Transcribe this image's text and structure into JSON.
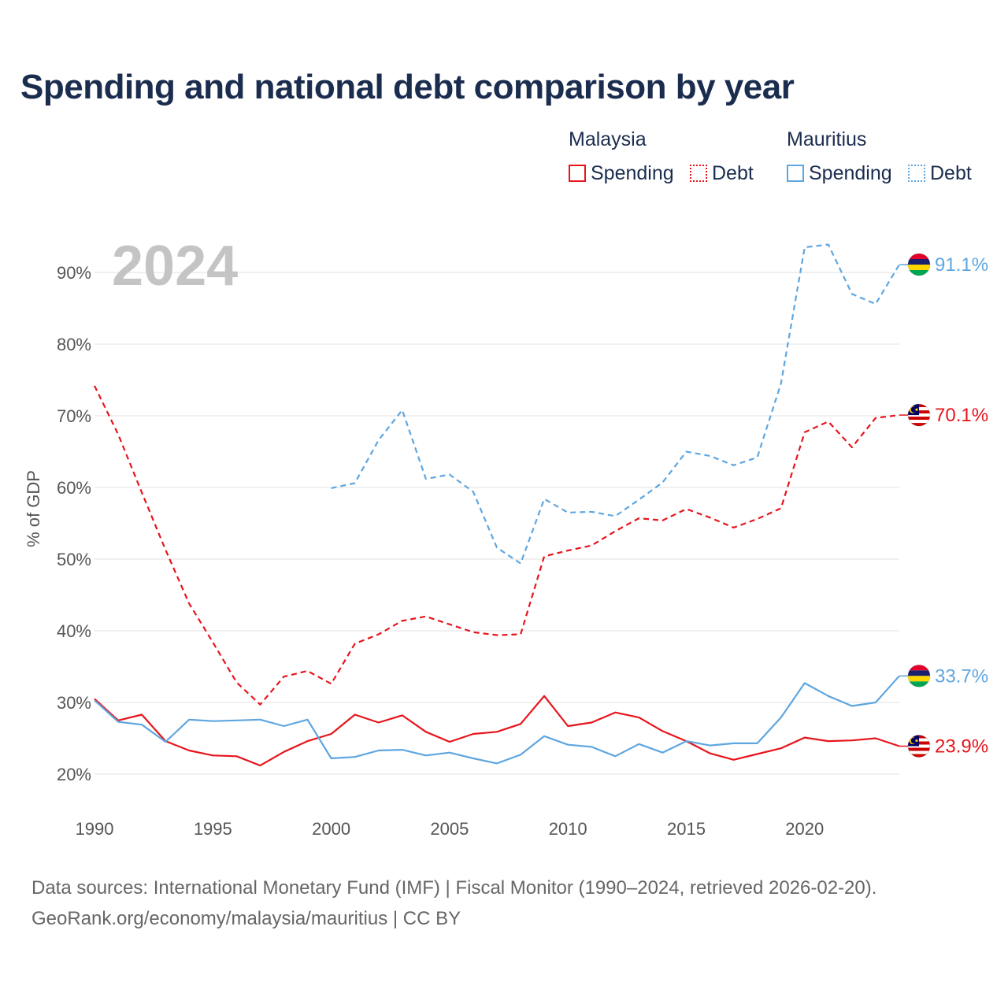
{
  "title": "Spending and national debt comparison by year",
  "legend": {
    "groups": [
      {
        "country": "Malaysia",
        "color": "#e8141c",
        "items": [
          {
            "label": "Spending",
            "style": "solid"
          },
          {
            "label": "Debt",
            "style": "dotted"
          }
        ]
      },
      {
        "country": "Mauritius",
        "color": "#5ea6e0",
        "items": [
          {
            "label": "Spending",
            "style": "solid"
          },
          {
            "label": "Debt",
            "style": "dotted"
          }
        ]
      }
    ]
  },
  "year_label": "2024",
  "source_line1": "Data sources: International Monetary Fund (IMF) | Fiscal Monitor (1990–2024, retrieved 2026-02-20).",
  "source_line2": "GeoRank.org/economy/malaysia/mauritius | CC BY",
  "colors": {
    "malaysia": "#e8141c",
    "mauritius": "#5ea6e0",
    "grid": "#e6e6e6",
    "text": "#1b2d4f"
  },
  "chart_data": {
    "type": "line",
    "title": "Spending and national debt comparison by year",
    "xlabel": "",
    "ylabel": "% of GDP",
    "xlim": [
      1990,
      2024
    ],
    "ylim": [
      15,
      95
    ],
    "x_ticks": [
      1990,
      1995,
      2000,
      2005,
      2010,
      2015,
      2020
    ],
    "y_ticks": [
      20,
      30,
      40,
      50,
      60,
      70,
      80,
      90
    ],
    "y_tick_labels": [
      "20%",
      "30%",
      "40%",
      "50%",
      "60%",
      "70%",
      "80%",
      "90%"
    ],
    "grid": true,
    "series": [
      {
        "name": "Malaysia Debt",
        "country": "Malaysia",
        "kind": "debt",
        "style": "dashed",
        "color": "#e8141c",
        "end_label": "70.1%",
        "flag": "malaysia-flag-icon",
        "x": [
          1990,
          1991,
          1992,
          1993,
          1994,
          1995,
          1996,
          1997,
          1998,
          1999,
          2000,
          2001,
          2002,
          2003,
          2004,
          2005,
          2006,
          2007,
          2008,
          2009,
          2010,
          2011,
          2012,
          2013,
          2014,
          2015,
          2016,
          2017,
          2018,
          2019,
          2020,
          2021,
          2022,
          2023,
          2024
        ],
        "values": [
          74.2,
          67.4,
          59.3,
          51.3,
          43.8,
          38.4,
          32.8,
          29.7,
          33.6,
          34.4,
          32.6,
          38.2,
          39.5,
          41.4,
          42.0,
          40.9,
          39.8,
          39.4,
          39.5,
          50.4,
          51.2,
          51.9,
          53.9,
          55.7,
          55.4,
          57.0,
          55.8,
          54.4,
          55.6,
          57.1,
          67.7,
          69.2,
          65.6,
          69.7,
          70.1
        ]
      },
      {
        "name": "Mauritius Debt",
        "country": "Mauritius",
        "kind": "debt",
        "style": "dashed",
        "color": "#5ea6e0",
        "end_label": "91.1%",
        "flag": "mauritius-flag-icon",
        "x": [
          2000,
          2001,
          2002,
          2003,
          2004,
          2005,
          2006,
          2007,
          2008,
          2009,
          2010,
          2011,
          2012,
          2013,
          2014,
          2015,
          2016,
          2017,
          2018,
          2019,
          2020,
          2021,
          2022,
          2023,
          2024
        ],
        "values": [
          59.9,
          60.6,
          66.6,
          70.8,
          61.2,
          61.8,
          59.4,
          51.6,
          49.4,
          58.4,
          56.5,
          56.6,
          56.0,
          58.3,
          60.7,
          65.0,
          64.4,
          63.1,
          64.2,
          74.5,
          93.5,
          93.9,
          87.0,
          85.6,
          91.1
        ]
      },
      {
        "name": "Malaysia Spending",
        "country": "Malaysia",
        "kind": "spending",
        "style": "solid",
        "color": "#e8141c",
        "end_label": "23.9%",
        "flag": "malaysia-flag-icon",
        "x": [
          1990,
          1991,
          1992,
          1993,
          1994,
          1995,
          1996,
          1997,
          1998,
          1999,
          2000,
          2001,
          2002,
          2003,
          2004,
          2005,
          2006,
          2007,
          2008,
          2009,
          2010,
          2011,
          2012,
          2013,
          2014,
          2015,
          2016,
          2017,
          2018,
          2019,
          2020,
          2021,
          2022,
          2023,
          2024
        ],
        "values": [
          30.5,
          27.5,
          28.3,
          24.6,
          23.3,
          22.6,
          22.5,
          21.2,
          23.1,
          24.6,
          25.6,
          28.3,
          27.2,
          28.2,
          25.9,
          24.5,
          25.6,
          25.9,
          27.0,
          30.9,
          26.7,
          27.2,
          28.6,
          27.9,
          26.0,
          24.6,
          22.9,
          22.0,
          22.8,
          23.6,
          25.1,
          24.6,
          24.7,
          25.0,
          23.9
        ]
      },
      {
        "name": "Mauritius Spending",
        "country": "Mauritius",
        "kind": "spending",
        "style": "solid",
        "color": "#5ea6e0",
        "end_label": "33.7%",
        "flag": "mauritius-flag-icon",
        "x": [
          1990,
          1991,
          1992,
          1993,
          1994,
          1995,
          1996,
          1997,
          1998,
          1999,
          2000,
          2001,
          2002,
          2003,
          2004,
          2005,
          2006,
          2007,
          2008,
          2009,
          2010,
          2011,
          2012,
          2013,
          2014,
          2015,
          2016,
          2017,
          2018,
          2019,
          2020,
          2021,
          2022,
          2023,
          2024
        ],
        "values": [
          30.3,
          27.3,
          26.9,
          24.5,
          27.6,
          27.4,
          27.5,
          27.6,
          26.7,
          27.6,
          22.2,
          22.4,
          23.3,
          23.4,
          22.6,
          23.0,
          22.2,
          21.5,
          22.7,
          25.3,
          24.1,
          23.8,
          22.5,
          24.2,
          23.0,
          24.6,
          24.0,
          24.3,
          24.3,
          27.9,
          32.7,
          30.9,
          29.5,
          30.0,
          33.7
        ]
      }
    ]
  }
}
